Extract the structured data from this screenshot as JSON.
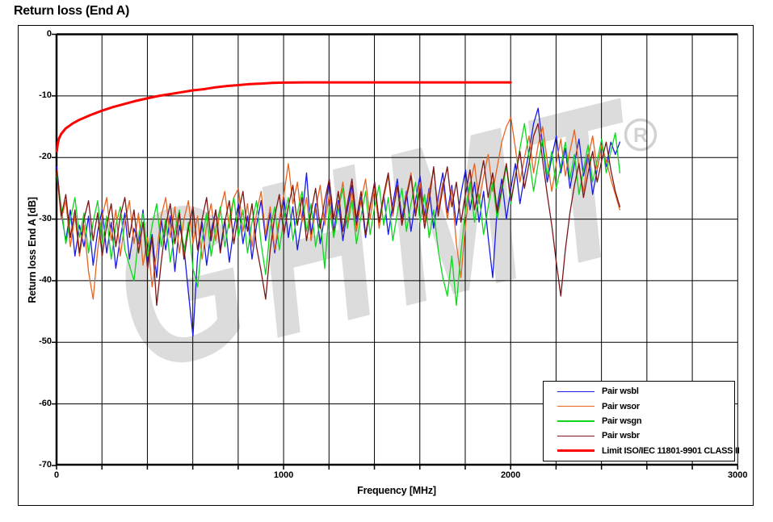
{
  "page": {
    "title": "Return loss (End A)"
  },
  "watermark": {
    "text": "GHMT",
    "symbol": "®"
  },
  "chart_data": {
    "type": "line",
    "title": "Return loss (End A)",
    "xlabel": "Frequency [MHz]",
    "ylabel": "Return loss End A [dB]",
    "xlim": [
      0,
      3000
    ],
    "ylim": [
      -70,
      0
    ],
    "grid": true,
    "x_grid_step": 200,
    "x_tick_labels": [
      0,
      1000,
      2000,
      3000
    ],
    "y_ticks": [
      0,
      -10,
      -20,
      -30,
      -40,
      -50,
      -60,
      -70
    ],
    "legend_position": "bottom-right",
    "series": [
      {
        "name": "Pair wsbl",
        "color": "#1a1ae6",
        "width": 1.3,
        "x_start": 1,
        "x_step": 20,
        "values": [
          -21.5,
          -29,
          -33.5,
          -28.5,
          -36,
          -31,
          -34.5,
          -29.5,
          -37.5,
          -32,
          -28.5,
          -35.5,
          -30.5,
          -38,
          -33,
          -29,
          -36.5,
          -31.5,
          -34,
          -28.5,
          -37,
          -32.5,
          -39.5,
          -30,
          -35,
          -29.5,
          -38.5,
          -31,
          -34.5,
          -42,
          -49,
          -36,
          -30.5,
          -37.5,
          -32,
          -28.5,
          -35,
          -30,
          -37,
          -31.5,
          -27.5,
          -34,
          -29.5,
          -36.5,
          -31,
          -27,
          -33.5,
          -29,
          -35.5,
          -30.5,
          -26.5,
          -33,
          -28,
          -35,
          -30,
          -22.5,
          -32.5,
          -27.5,
          -34,
          -29.5,
          -23.5,
          -32,
          -27,
          -33.5,
          -28.5,
          -24.5,
          -31,
          -26.5,
          -33,
          -28,
          -24,
          -30.5,
          -26,
          -32.5,
          -27.5,
          -23.5,
          -30,
          -25.5,
          -32,
          -27,
          -23,
          -29.5,
          -25,
          -31.5,
          -26.5,
          -22.5,
          -29,
          -24.5,
          -31,
          -26,
          -22,
          -28.5,
          -24,
          -30.5,
          -25.5,
          -33,
          -39.5,
          -28,
          -23.5,
          -30,
          -25,
          -21,
          -27.5,
          -23,
          -19,
          -14.5,
          -12,
          -18,
          -24,
          -20,
          -16.5,
          -22.5,
          -18.5,
          -25,
          -21,
          -17,
          -23,
          -19.5,
          -26,
          -22,
          -18,
          -21.5,
          -17.5,
          -19.5,
          -17.5
        ]
      },
      {
        "name": "Pair wsor",
        "color": "#e8641e",
        "width": 1.3,
        "x_start": 1,
        "x_step": 20,
        "values": [
          -22.5,
          -30,
          -27,
          -34.5,
          -29.5,
          -36,
          -31,
          -38.5,
          -43,
          -35,
          -29.5,
          -26.5,
          -33.5,
          -28.5,
          -36,
          -30.5,
          -27,
          -34,
          -29,
          -37.5,
          -33,
          -41,
          -35.5,
          -29.5,
          -26.5,
          -33,
          -28,
          -35.5,
          -30,
          -27,
          -34,
          -29.5,
          -36.5,
          -31,
          -27.5,
          -33.5,
          -28.5,
          -25.5,
          -31.5,
          -26.5,
          -25,
          -32,
          -27.5,
          -34.5,
          -29,
          -25.5,
          -32.5,
          -28,
          -35,
          -30,
          -26,
          -21,
          -27.5,
          -24,
          -30.5,
          -26.5,
          -33.5,
          -28.5,
          -24.5,
          -31,
          -26,
          -33,
          -28,
          -24,
          -30.5,
          -25.5,
          -32,
          -27,
          -23.5,
          -30,
          -25,
          -31.5,
          -26.5,
          -23,
          -29.5,
          -24.5,
          -31,
          -26,
          -22.5,
          -29,
          -24,
          -30.5,
          -25.5,
          -22,
          -28.5,
          -24,
          -30,
          -25,
          -34,
          -39.5,
          -31,
          -24.5,
          -21,
          -27.5,
          -23,
          -19.5,
          -25.5,
          -21.5,
          -17.5,
          -15,
          -13.5,
          -18.5,
          -24,
          -20,
          -16.5,
          -22.5,
          -18,
          -15,
          -20.5,
          -25.5,
          -21,
          -17,
          -23,
          -19,
          -15.5,
          -21.5,
          -25.5,
          -20,
          -16.5,
          -22,
          -18,
          -20.5,
          -23.5,
          -26,
          -28.5
        ]
      },
      {
        "name": "Pair wsgn",
        "color": "#0fd51e",
        "width": 1.3,
        "x_start": 1,
        "x_step": 20,
        "values": [
          -23,
          -28,
          -34,
          -30,
          -26.5,
          -33,
          -29,
          -35.5,
          -30.5,
          -27,
          -34,
          -29.5,
          -36.5,
          -31,
          -28,
          -35,
          -37.5,
          -40,
          -33,
          -29,
          -36,
          -31,
          -27.5,
          -34.5,
          -30,
          -37,
          -32,
          -28.5,
          -35.5,
          -30.5,
          -38,
          -41,
          -33.5,
          -29,
          -36,
          -31.5,
          -28,
          -34.5,
          -30,
          -26.5,
          -33,
          -28.5,
          -35.5,
          -30.5,
          -27,
          -34,
          -39,
          -31.5,
          -28,
          -35,
          -30,
          -26.5,
          -33.5,
          -29,
          -25.5,
          -32,
          -27.5,
          -34.5,
          -30,
          -38,
          -28,
          -33,
          -28.5,
          -25,
          -31.5,
          -27,
          -34,
          -29.5,
          -25.5,
          -32.5,
          -28,
          -24.5,
          -31,
          -26.5,
          -33.5,
          -29,
          -25,
          -32,
          -27.5,
          -24,
          -30.5,
          -26,
          -33,
          -28.5,
          -35,
          -39.5,
          -42.5,
          -36,
          -44,
          -35.5,
          -28.5,
          -24,
          -30.5,
          -26,
          -32.5,
          -28,
          -24,
          -30,
          -25.5,
          -21.5,
          -27.5,
          -23,
          -18.5,
          -14.5,
          -20,
          -25.5,
          -21,
          -17,
          -23,
          -19,
          -25,
          -21.5,
          -17.5,
          -23.5,
          -19.5,
          -26,
          -22,
          -18,
          -24,
          -20.5,
          -17,
          -22.5,
          -19,
          -16,
          -22.5
        ]
      },
      {
        "name": "Pair wsbr",
        "color": "#7d1616",
        "width": 1.3,
        "x_start": 1,
        "x_step": 20,
        "values": [
          -22,
          -29.5,
          -26,
          -33,
          -28.5,
          -35.5,
          -30,
          -27,
          -33.5,
          -29,
          -36,
          -31,
          -27.5,
          -34.5,
          -29.5,
          -26.5,
          -33,
          -28.5,
          -35.5,
          -30.5,
          -38,
          -33,
          -44,
          -37,
          -31,
          -27.5,
          -34,
          -29,
          -36.5,
          -31.5,
          -28,
          -35,
          -30,
          -26.5,
          -33.5,
          -28.5,
          -35.5,
          -30.5,
          -27,
          -34,
          -29,
          -25.5,
          -32,
          -27.5,
          -34.5,
          -38.5,
          -43,
          -35,
          -29.5,
          -26,
          -32.5,
          -28,
          -24.5,
          -31,
          -26.5,
          -33.5,
          -29,
          -25,
          -31.5,
          -27,
          -23.5,
          -30,
          -25.5,
          -32,
          -27.5,
          -23.5,
          -30,
          -25.5,
          -32.5,
          -28,
          -24,
          -30.5,
          -26,
          -22.5,
          -29,
          -24.5,
          -31,
          -26.5,
          -23,
          -29.5,
          -25,
          -31.5,
          -27,
          -21.5,
          -29.5,
          -25,
          -21.5,
          -28,
          -24,
          -30.5,
          -26,
          -22,
          -28.5,
          -24.5,
          -20.5,
          -26.5,
          -22.5,
          -29,
          -25,
          -21,
          -27,
          -23,
          -19,
          -25,
          -21,
          -16.5,
          -14.5,
          -20.5,
          -26,
          -31,
          -37,
          -42.5,
          -35,
          -29,
          -24.5,
          -21,
          -26.5,
          -22.5,
          -19,
          -24,
          -20.5,
          -17.5,
          -22,
          -25.5,
          -28
        ]
      },
      {
        "name": "Limit ISO/IEC 11801-9901  CLASS II",
        "color": "#ff0000",
        "width": 3,
        "points": [
          [
            1,
            -19
          ],
          [
            5,
            -17.8
          ],
          [
            10,
            -17
          ],
          [
            20,
            -16.2
          ],
          [
            40,
            -15.3
          ],
          [
            70,
            -14.5
          ],
          [
            100,
            -13.9
          ],
          [
            150,
            -13.1
          ],
          [
            200,
            -12.4
          ],
          [
            250,
            -11.8
          ],
          [
            300,
            -11.3
          ],
          [
            350,
            -10.8
          ],
          [
            400,
            -10.4
          ],
          [
            450,
            -10.0
          ],
          [
            500,
            -9.7
          ],
          [
            550,
            -9.4
          ],
          [
            600,
            -9.1
          ],
          [
            650,
            -8.9
          ],
          [
            700,
            -8.6
          ],
          [
            750,
            -8.4
          ],
          [
            800,
            -8.25
          ],
          [
            850,
            -8.1
          ],
          [
            900,
            -8.0
          ],
          [
            950,
            -7.9
          ],
          [
            1000,
            -7.85
          ],
          [
            1100,
            -7.8
          ],
          [
            1500,
            -7.8
          ],
          [
            2000,
            -7.8
          ]
        ]
      }
    ]
  }
}
